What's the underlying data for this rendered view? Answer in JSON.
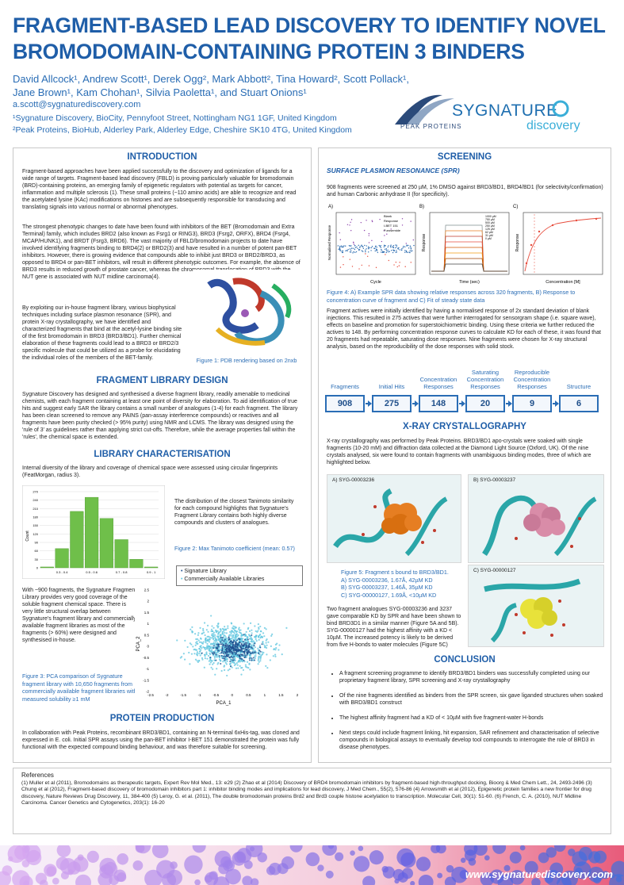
{
  "header": {
    "title_line1": "FRAGMENT-BASED LEAD DISCOVERY TO IDENTIFY NOVEL",
    "title_line2": "BROMODOMAIN-CONTAINING PROTEIN 3 BINDERS",
    "authors_line1": "David Allcock¹, Andrew Scott¹, Derek Ogg², Mark Abbott², Tina Howard², Scott Pollack¹,",
    "authors_line2": "Jane Brown¹, Kam Chohan¹, Silvia Paoletta¹, and Stuart Onions¹",
    "email": "a.scott@sygnaturediscovery.com",
    "affiliation1": "¹Sygnature Discovery, BioCity, Pennyfoot Street, Nottingham NG1 1GF, United Kingdom",
    "affiliation2": "²Peak Proteins, BioHub, Alderley Park, Alderley Edge, Cheshire SK10 4TG, United Kingdom",
    "logo_peak": "PEAK PROTEINS",
    "logo_sygnature": "SYGNATURE",
    "logo_discovery": "discovery"
  },
  "introduction": {
    "heading": "INTRODUCTION",
    "p1": "Fragment-based approaches have been applied successfully to the discovery and optimization of ligands for a wide range of targets. Fragment-based lead discovery (FBLD) is proving particularly valuable for bromodomain (BRD)-containing proteins, an emerging family of epigenetic regulators with potential as targets for cancer, inflammation and multiple sclerosis (1). These small proteins (~110 amino acids) are able to recognize and read the acetylated lysine (KAc) modifications on histones and are subsequently responsible for transducing and translating signals into various normal or abnormal phenotypes.",
    "p2": "The strongest phenotypic changes to date have been found with inhibitors of the BET (Bromodomain and Extra Terminal) family, which includes BRD2 (also known as Fsrg1 or RING3), BRD3 (Fsrg2, ORFX), BRD4 (Fsrg4, MCAP/HUNK1), and BRDT (Fsrg3, BRD6). The vast majority of FBLD/bromodomain projects to date have involved identifying fragments binding to BRD4(2) or BRD2(3) and have resulted in a number of potent pan-BET inhibitors. However, there is growing evidence that compounds able to inhibit just BRD3 or BRD2/BRD3, as opposed to BRD4 or pan-BET inhibitors, will result in different phenotypic outcomes. For example, the absence of BRD3 results in reduced growth of prostate cancer, whereas the chromosomal translocation of BRD3 with the NUT gene is associated with NUT midline carcinoma(4).",
    "p3": "By exploiting our in-house fragment library, various biophysical techniques including surface plasmon resonance (SPR), and protein X-ray crystallography, we have identified and characterized fragments that bind at the acetyl-lysine binding site of the first bromodomain in BRD3 (BRD3/BD1). Further chemical elaboration of these fragments could lead to a BRD3 or BRD2/3 specific molecule that could be utilized as a probe for elucidating the individual roles of the members of the BET-family.",
    "fig1_caption": "Figure 1: PDB rendering based on 2nxb"
  },
  "library_design": {
    "heading": "FRAGMENT LIBRARY DESIGN",
    "p1": "Sygnature Discovery has designed and synthesised a diverse fragment library, readily amenable to medicinal chemists, with each fragment containing at least one point of diversity for elaboration. To aid identification of true hits and suggest early SAR the library contains a small number of analogues (1-4) for each fragment. The library has been clean screened to remove any PAINS (pan-assay interference compounds) or reactives and all fragments have been purity checked (> 95% purity) using NMR and LCMS. The library was designed using the 'rule of 3' as guidelines rather than applying strict cut-offs. Therefore, while the average properties fall within the 'rules', the chemical space is extended."
  },
  "library_char": {
    "heading": "LIBRARY CHARACTERISATION",
    "p1": "Internal diversity of the library and coverage of chemical space were assessed using circular fingerprints (FeatMorgan, radius 3).",
    "p2": "The distribution of the closest Tanimoto similarity for each compound highlights that Sygnature's Fragment Library contains both highly diverse compounds and clusters of analogues.",
    "fig2_caption": "Figure 2: Max Tanimoto coefficient (mean: 0.57)",
    "p3": "With ~900 fragments, the Sygnature Fragment Library provides very good coverage of the soluble fragment chemical space. There is very little structural overlap between Sygnature's fragment library and commercially available fragment libraries as most of the fragments (> 60%) were designed and synthesised in-house.",
    "fig3_caption": "Figure 3: PCA comparison of Sygnature fragment library with 10,650 fragments from commercially available fragment libraries with measured solubility ≥1 mM",
    "legend_a": "Signature Library",
    "legend_b": "Commercially Available Libraries",
    "pca_xlabel": "PCA_1",
    "pca_ylabel": "PCA_2",
    "pca_xticks": [
      "-2.5",
      "-2",
      "-1.5",
      "-1",
      "-0.5",
      "0",
      "0.5",
      "1",
      "1.5",
      "2"
    ],
    "pca_yticks": [
      "2.5",
      "2",
      "1.5",
      "1",
      "0.5",
      "0",
      "-0.5",
      "-1",
      "-1.5",
      "-2"
    ],
    "hist_ylabel": "Count",
    "hist_yticks": [
      "270",
      "240",
      "210",
      "180",
      "150",
      "120",
      "90",
      "60",
      "30",
      "0"
    ]
  },
  "protein_production": {
    "heading": "PROTEIN PRODUCTION",
    "p1": "In collaboration with Peak Proteins, recombinant BRD3/BD1, containing an N-terminal 6xHis-tag, was cloned and expressed in E. coli. Initial SPR assays using the pan-BET inhibitor I-BET 151 demonstrated the protein was fully functional with the expected compound binding behaviour, and was therefore suitable for screening."
  },
  "screening": {
    "heading": "SCREENING",
    "spr_heading": "SURFACE PLASMON RESONANCE (SPR)",
    "p1": "908 fragments were screened at 250 µM, 1% DMSO against BRD3/BD1, BRD4/BD1 (for selectivity/confirmation) and human Carbonic anhydrase II (for specificity).",
    "fig4_caption": "Figure 4: A) Example SPR data showing relative responses across 320 fragments, B) Response to concentration curve of fragment and C) Fit of steady state data",
    "panelA": "A)",
    "panelB": "B)",
    "panelC": "C)",
    "legendA": [
      "Blank",
      "Response",
      "I-BET 151",
      "Furosemide"
    ],
    "legendB": [
      "1000 µM",
      "750 µM",
      "500 µM",
      "250 µM",
      "125 µM",
      "62 µM",
      "31 µM",
      "0 µM"
    ],
    "xlabelA": "Cycle",
    "xlabelB": "Time (sec)",
    "xlabelC": "Concentration [M]",
    "ylabelA": "Normalised Response",
    "ylabelB": "Response",
    "ylabelC": "Response",
    "p2": "Fragment actives were initially identified by having a normalised response of 2x standard deviation of blank injections. This resulted in 275 actives that were further interrogated for sensorgram shape (i.e. square wave), effects on baseline and promotion for superstoichiometric binding. Using these criteria we further reduced the actives to 148. By performing concentration response curves to calculate KD for each of these, it was found that 20 fragments had repeatable, saturating dose responses. Nine fragments were chosen for X-ray structural analysis, based on the reproducibility of the dose responses with solid stock."
  },
  "funnel": [
    {
      "label": "Fragments",
      "value": "908"
    },
    {
      "label": "Initial Hits",
      "value": "275"
    },
    {
      "label": "Concentration Responses",
      "value": "148"
    },
    {
      "label": "Saturating Concentration Responses",
      "value": "20"
    },
    {
      "label": "Reproducible Concentration Responses",
      "value": "9"
    },
    {
      "label": "Structure",
      "value": "6"
    }
  ],
  "xray": {
    "heading": "X-RAY CRYSTALLOGRAPHY",
    "p1": "X-ray crystallography was performed by Peak Proteins. BRD3/BD1 apo-crystals were soaked with single fragments (10-20 mM) and diffraction data collected at the Diamond Light Source (Oxford, UK). Of the nine crystals analysed, six were found to contain fragments with unambiguous binding modes, three of which are highlighted below.",
    "labelA": "A) SYG-00003236",
    "labelB": "B) SYG-00003237",
    "labelC": "C) SYG-00000127",
    "fig5_title": "Figure 5: Fragment s bound to BRD3/BD1.",
    "fig5_a": "A) SYG-00003236, 1.67Å, 42µM KD",
    "fig5_b": "B) SYG-00003237, 1.46Å, 35µM KD",
    "fig5_c": "C) SYG-00000127, 1.69Å, <10µM KD",
    "p2": "Two fragment analogues SYG-00003236 and 3237 gave comparable KD by SPR and have been shown to bind BRD3D1 in a similar manner (Figure 5A and 5B). SYG-00000127 had the highest affinity with a KD < 10µM. The increased potency is likely to be derived from five H-bonds to water molecules (Figure 5C)"
  },
  "conclusion": {
    "heading": "CONCLUSION",
    "items": [
      "A fragment screening programme to identify BRD3/BD1 binders was successfully completed using our proprietary fragment library, SPR screening and X-ray crystallography",
      "Of the nine fragments identified as binders from the SPR screen, six gave liganded structures when soaked with BRD3/BD1 construct",
      "The highest affinity fragment had a KD of < 10µM with five fragment-water H-bonds",
      "Next steps could include fragment linking, hit expansion, SAR refinement and characterisation of selective compounds in biological assays to eventually develop tool compounds to interrogate the role of BRD3 in disease phenotypes."
    ]
  },
  "references": {
    "heading": "References",
    "text": "(1) Muller et al (2011), Bromodomains as therapeutic targets, Expert Rev Mol Med., 13: e29 (2) Zhao et al (2014) Discovery of BRD4 bromodomain inhibitors by fragment-based high-throughput docking, Bioorg & Med Chem Lett., 24, 2493-2496 (3) Chung et al (2012), Fragment-based discovery of bromodomain inhibitors part 1: inhibitor binding modes and implications for lead discovery, J Med Chem., 55(2), 576-86 (4) Arrowsmith et al (2012), Epigenetic protein families a new frontier for drug discovery, Nature Reviews Drug Discovery, 11, 384-400 (5) Leroy, G. et al. (2011), The double bromodomain proteins Brd2 and Brd3 couple histone acetylation to transcription. Molecular Cell, 30(1): 51-60. (6) French, C. A. (2010), NUT Midline Carcinoma. Cancer Genetics and Cytogenetics, 203(1): 16-20"
  },
  "footer": {
    "url": "www.sygnaturediscovery.com"
  },
  "colors": {
    "title_blue": "#1f5ea8",
    "hist_green": "#6fbf4a",
    "pca_dark": "#1e4f8f",
    "pca_light": "#5ec6df",
    "ligand_orange": "#e67e22",
    "ligand_pink": "#d98ca8",
    "ligand_yellow": "#e8e23a"
  },
  "chart_data": [
    {
      "type": "bar",
      "title": "",
      "ylabel": "Count",
      "categories": [
        "0.2 - 0.3",
        "0.3 - 0.4",
        "0.4 - 0.5",
        "0.5 - 0.6",
        "0.6 - 0.7",
        "0.7 - 0.8",
        "0.8 - 0.9",
        "0.9 - 1"
      ],
      "xtick_labels_shown": [
        "0.3 - 0.4",
        "0.5 - 0.6",
        "0.7 - 0.8",
        "0.9 - 1"
      ],
      "values": [
        3,
        68,
        200,
        250,
        175,
        100,
        30,
        3
      ],
      "ylim": [
        0,
        270
      ],
      "grid": true
    },
    {
      "type": "scatter",
      "xlabel": "PCA_1",
      "ylabel": "PCA_2",
      "xlim": [
        -2.5,
        2
      ],
      "ylim": [
        -2,
        2.5
      ],
      "series": [
        {
          "name": "Signature Library"
        },
        {
          "name": "Commercially Available Libraries"
        }
      ]
    }
  ]
}
